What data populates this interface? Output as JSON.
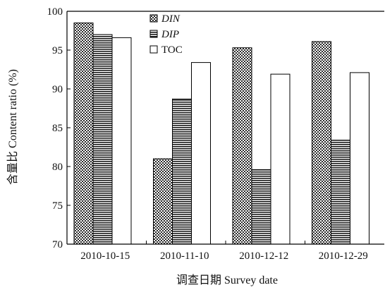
{
  "chart_data": {
    "type": "bar",
    "categories": [
      "2010-10-15",
      "2010-11-10",
      "2010-12-12",
      "2010-12-29"
    ],
    "series": [
      {
        "name": "DIN",
        "values": [
          98.5,
          81.0,
          95.3,
          96.1
        ],
        "pattern": "checker",
        "italic": true
      },
      {
        "name": "DIP",
        "values": [
          97.0,
          88.7,
          79.6,
          83.4
        ],
        "pattern": "hstripes",
        "italic": true
      },
      {
        "name": "TOC",
        "values": [
          96.6,
          93.4,
          91.9,
          92.1
        ],
        "pattern": "blank",
        "italic": false
      }
    ],
    "ylim": [
      70,
      100
    ],
    "yticks": [
      70,
      75,
      80,
      85,
      90,
      95,
      100
    ],
    "xlabel": "调查日期 Survey date",
    "ylabel": "含量比 Content ratio (%)",
    "legend_position": "top-right",
    "grid": false,
    "colors": {
      "bar_fill": "#ffffff",
      "bar_pattern": "#2b2b2b",
      "axis": "#000000"
    }
  }
}
